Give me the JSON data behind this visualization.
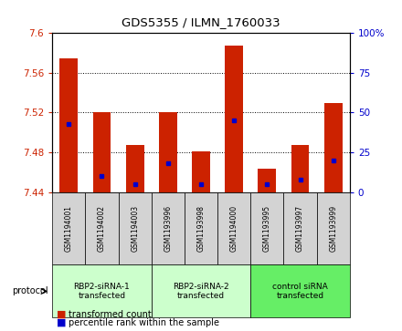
{
  "title": "GDS5355 / ILMN_1760033",
  "samples": [
    "GSM1194001",
    "GSM1194002",
    "GSM1194003",
    "GSM1193996",
    "GSM1193998",
    "GSM1194000",
    "GSM1193995",
    "GSM1193997",
    "GSM1193999"
  ],
  "transformed_count": [
    7.575,
    7.52,
    7.487,
    7.52,
    7.481,
    7.587,
    7.463,
    7.487,
    7.53
  ],
  "percentile_rank": [
    43,
    10,
    5,
    18,
    5,
    45,
    5,
    8,
    20
  ],
  "groups": [
    {
      "label": "RBP2-siRNA-1\ntransfected",
      "start": 0,
      "end": 3
    },
    {
      "label": "RBP2-siRNA-2\ntransfected",
      "start": 3,
      "end": 6
    },
    {
      "label": "control siRNA\ntransfected",
      "start": 6,
      "end": 9
    }
  ],
  "group_colors": [
    "#ccffcc",
    "#ccffcc",
    "#66ee66"
  ],
  "ylim_left": [
    7.44,
    7.6
  ],
  "ylim_right": [
    0,
    100
  ],
  "yticks_left": [
    7.44,
    7.48,
    7.52,
    7.56,
    7.6
  ],
  "yticks_right": [
    0,
    25,
    50,
    75,
    100
  ],
  "bar_color": "#CC2200",
  "percentile_color": "#0000CC",
  "bar_bottom": 7.44,
  "background_color": "#ffffff",
  "label_area_color": "#D3D3D3"
}
